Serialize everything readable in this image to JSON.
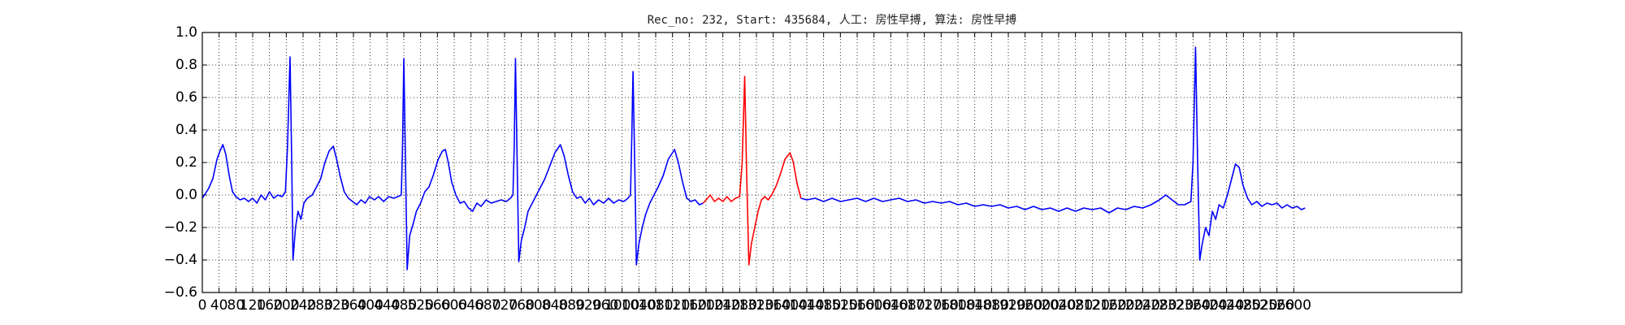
{
  "chart_data": {
    "type": "line",
    "title": "Rec_no: 232, Start: 435684, 人工: 房性早搏, 算法: 房性早搏",
    "xlim": [
      0,
      3000
    ],
    "ylim": [
      -0.6,
      1.0
    ],
    "grid": true,
    "xticks": [
      0,
      40,
      80,
      120,
      160,
      200,
      240,
      280,
      320,
      360,
      400,
      440,
      480,
      520,
      560,
      600,
      640,
      680,
      720,
      760,
      800,
      840,
      880,
      920,
      960,
      1000,
      1040,
      1080,
      1120,
      1160,
      1200,
      1240,
      1280,
      1320,
      1360,
      1400,
      1440,
      1480,
      1520,
      1560,
      1600,
      1640,
      1680,
      1720,
      1760,
      1800,
      1840,
      1880,
      1920,
      1960,
      2000,
      2040,
      2080,
      2120,
      2160,
      2200,
      2240,
      2280,
      2320,
      2360,
      2400,
      2440,
      2480,
      2520,
      2560,
      2600
    ],
    "yticks": [
      {
        "value": -0.6,
        "label": "−0.6"
      },
      {
        "value": -0.4,
        "label": "−0.4"
      },
      {
        "value": -0.2,
        "label": "−0.2"
      },
      {
        "value": 0,
        "label": "0.0"
      },
      0.2,
      0.4,
      0.6,
      0.8,
      {
        "value": 1,
        "label": "1.0"
      }
    ],
    "series": [
      {
        "color": "#0000ff",
        "x": [
          0,
          5,
          15,
          25,
          35,
          42,
          49,
          56,
          64,
          72,
          80,
          90,
          100,
          110,
          120,
          130,
          140,
          150,
          160,
          170,
          180,
          190,
          198,
          203,
          209,
          213,
          216,
          222,
          228,
          235,
          242,
          250,
          262,
          272,
          282,
          292,
          302,
          312,
          320,
          328,
          338,
          348,
          358,
          368,
          378,
          388,
          398,
          410,
          420,
          432,
          444,
          456,
          466,
          474,
          477,
          480,
          484,
          488,
          494,
          502,
          510,
          520,
          530,
          540,
          550,
          562,
          572,
          579,
          586,
          594,
          604,
          614,
          624,
          634,
          644,
          654,
          664,
          676,
          688,
          700,
          712,
          724,
          734,
          740,
          743,
          746,
          750,
          754,
          760,
          768,
          776,
          786,
          796,
          806,
          816,
          828,
          840,
          853,
          862,
          872,
          882,
          892,
          902,
          912,
          922,
          932,
          944,
          956,
          968,
          980,
          992,
          1004,
          1014,
          1020,
          1023,
          1026,
          1030,
          1034,
          1040,
          1048,
          1056,
          1066,
          1076,
          1086,
          1098,
          1110,
          1125,
          1134,
          1144,
          1154,
          1164,
          1174,
          1184,
          1193
        ],
        "values": [
          -0.02,
          0.0,
          0.04,
          0.1,
          0.22,
          0.27,
          0.31,
          0.25,
          0.12,
          0.02,
          -0.01,
          -0.03,
          -0.02,
          -0.04,
          -0.02,
          -0.05,
          0.0,
          -0.03,
          0.02,
          -0.02,
          0.0,
          -0.01,
          0.02,
          0.3,
          0.85,
          0.2,
          -0.4,
          -0.2,
          -0.1,
          -0.15,
          -0.05,
          -0.02,
          0.0,
          0.05,
          0.1,
          0.2,
          0.27,
          0.3,
          0.22,
          0.12,
          0.02,
          -0.02,
          -0.04,
          -0.06,
          -0.03,
          -0.05,
          -0.01,
          -0.03,
          -0.01,
          -0.04,
          -0.01,
          -0.02,
          -0.01,
          0.0,
          0.3,
          0.84,
          0.2,
          -0.46,
          -0.25,
          -0.18,
          -0.1,
          -0.05,
          0.02,
          0.05,
          0.12,
          0.22,
          0.27,
          0.28,
          0.2,
          0.08,
          0.0,
          -0.05,
          -0.04,
          -0.08,
          -0.1,
          -0.05,
          -0.07,
          -0.03,
          -0.05,
          -0.04,
          -0.03,
          -0.04,
          -0.02,
          0.0,
          0.3,
          0.84,
          0.2,
          -0.41,
          -0.28,
          -0.2,
          -0.1,
          -0.05,
          0.0,
          0.05,
          0.1,
          0.18,
          0.26,
          0.31,
          0.24,
          0.12,
          0.02,
          -0.02,
          -0.01,
          -0.05,
          -0.02,
          -0.06,
          -0.03,
          -0.05,
          -0.02,
          -0.05,
          -0.03,
          -0.04,
          -0.02,
          0.0,
          0.35,
          0.76,
          0.2,
          -0.43,
          -0.3,
          -0.2,
          -0.12,
          -0.05,
          0.0,
          0.05,
          0.12,
          0.22,
          0.28,
          0.2,
          0.08,
          -0.02,
          -0.04,
          -0.03,
          -0.06,
          -0.05
        ]
      },
      {
        "color": "#ff0000",
        "x": [
          1193,
          1200,
          1210,
          1220,
          1230,
          1240,
          1250,
          1260,
          1270,
          1280,
          1286,
          1292,
          1297,
          1302,
          1308,
          1316,
          1324,
          1332,
          1340,
          1348,
          1356,
          1366,
          1376,
          1388,
          1400,
          1408,
          1416,
          1426
        ],
        "values": [
          -0.05,
          -0.03,
          0.0,
          -0.04,
          -0.02,
          -0.04,
          -0.01,
          -0.04,
          -0.02,
          -0.01,
          0.2,
          0.73,
          0.1,
          -0.43,
          -0.3,
          -0.2,
          -0.1,
          -0.03,
          -0.01,
          -0.03,
          0.0,
          0.05,
          0.12,
          0.22,
          0.26,
          0.2,
          0.08,
          -0.02
        ]
      },
      {
        "color": "#0000ff",
        "x": [
          1426,
          1440,
          1460,
          1480,
          1500,
          1520,
          1540,
          1560,
          1580,
          1600,
          1620,
          1640,
          1660,
          1680,
          1700,
          1720,
          1740,
          1760,
          1780,
          1800,
          1820,
          1840,
          1860,
          1880,
          1900,
          1920,
          1940,
          1960,
          1980,
          2000,
          2020,
          2040,
          2060,
          2080,
          2100,
          2120,
          2140,
          2160,
          2180,
          2200,
          2220,
          2240,
          2260,
          2280,
          2295,
          2310,
          2325,
          2340,
          2355,
          2360,
          2366,
          2371,
          2376,
          2382,
          2390,
          2398,
          2406,
          2414,
          2422,
          2432,
          2442,
          2452,
          2461,
          2470,
          2479,
          2490,
          2500,
          2512,
          2524,
          2536,
          2548,
          2560,
          2572,
          2584,
          2596,
          2608,
          2618,
          2627
        ],
        "values": [
          -0.02,
          -0.03,
          -0.02,
          -0.04,
          -0.02,
          -0.04,
          -0.03,
          -0.02,
          -0.04,
          -0.02,
          -0.04,
          -0.03,
          -0.02,
          -0.04,
          -0.03,
          -0.05,
          -0.04,
          -0.05,
          -0.04,
          -0.06,
          -0.05,
          -0.07,
          -0.06,
          -0.07,
          -0.06,
          -0.08,
          -0.07,
          -0.09,
          -0.07,
          -0.09,
          -0.08,
          -0.1,
          -0.08,
          -0.1,
          -0.08,
          -0.09,
          -0.08,
          -0.11,
          -0.08,
          -0.09,
          -0.07,
          -0.08,
          -0.06,
          -0.03,
          0.0,
          -0.03,
          -0.06,
          -0.06,
          -0.04,
          0.2,
          0.91,
          0.2,
          -0.4,
          -0.3,
          -0.2,
          -0.25,
          -0.1,
          -0.15,
          -0.06,
          -0.08,
          0.0,
          0.1,
          0.19,
          0.17,
          0.06,
          -0.02,
          -0.06,
          -0.04,
          -0.07,
          -0.05,
          -0.06,
          -0.05,
          -0.08,
          -0.06,
          -0.08,
          -0.07,
          -0.09,
          -0.08
        ]
      }
    ]
  }
}
